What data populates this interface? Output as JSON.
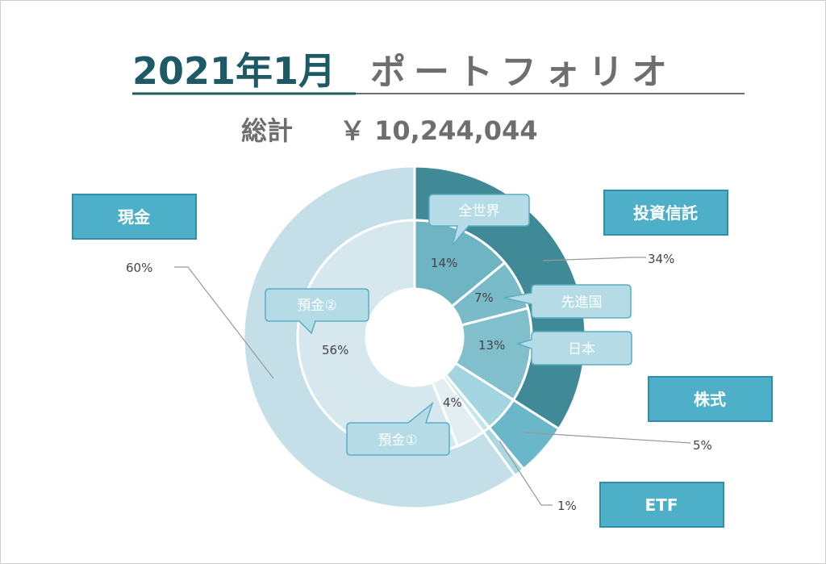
{
  "header": {
    "title_date": "2021年1月",
    "title_rest": "ポートフォリオ",
    "total_label": "総計",
    "total_value": "￥ 10,244,044"
  },
  "colors": {
    "title_accent": "#1e5a66",
    "title_gray": "#6e6e6e",
    "box": "#4eb0c8",
    "box_border": "#2f8ea8",
    "callout": "#b5dce6",
    "callout_border": "#5aaec4",
    "leader": "#999999"
  },
  "chart_data": {
    "type": "pie",
    "variant": "double-donut",
    "outer": [
      {
        "label": "投資信託",
        "value": 34,
        "display": "34%",
        "color": "#3f8a96"
      },
      {
        "label": "株式",
        "value": 5,
        "display": "5%",
        "color": "#69b7c8"
      },
      {
        "label": "ETF",
        "value": 1,
        "display": "1%",
        "color": "#a9d7e2"
      },
      {
        "label": "現金",
        "value": 60,
        "display": "60%",
        "color": "#c4dfe7"
      }
    ],
    "inner": [
      {
        "label": "全世界",
        "value": 14,
        "display": "14%",
        "color": "#6fb4c2"
      },
      {
        "label": "先進国",
        "value": 7,
        "display": "7%",
        "color": "#79bbc8"
      },
      {
        "label": "日本",
        "value": 13,
        "display": "13%",
        "color": "#82bfcc"
      },
      {
        "label": "",
        "value": 5,
        "display": "",
        "color": "#a5d5e0"
      },
      {
        "label": "",
        "value": 1,
        "display": "",
        "color": "#c6e6ee"
      },
      {
        "label": "預金①",
        "value": 4,
        "display": "4%",
        "color": "#e2eef2"
      },
      {
        "label": "預金②",
        "value": 56,
        "display": "56%",
        "color": "#d6e8ee"
      }
    ]
  }
}
